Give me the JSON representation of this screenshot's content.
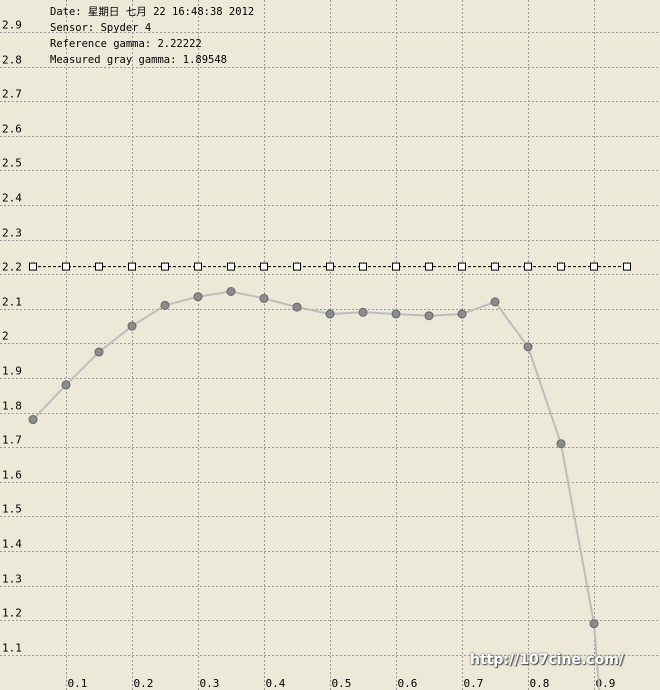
{
  "info": {
    "date": "Date: 星期日 七月 22 16:48:38 2012",
    "sensor": "Sensor: Spyder 4",
    "reference": "Reference gamma: 2.22222",
    "measured": "Measured gray gamma: 1.89548"
  },
  "watermark": "http://107cine.com/",
  "colors": {
    "background": "#ECE9D8",
    "grid": "#999999",
    "measured_line": "#BDBDBD",
    "measured_marker": "#8C8C8C",
    "reference_line": "#000000"
  },
  "chart_data": {
    "type": "line",
    "title": "",
    "xlabel": "",
    "ylabel": "",
    "xlim": [
      0,
      1
    ],
    "ylim": [
      1.0,
      2.95
    ],
    "grid": true,
    "legend": "none",
    "x_ticks": [
      "0.1",
      "0.2",
      "0.3",
      "0.4",
      "0.5",
      "0.6",
      "0.7",
      "0.8",
      "0.9"
    ],
    "y_ticks": [
      "1.1",
      "1.2",
      "1.3",
      "1.4",
      "1.5",
      "1.6",
      "1.7",
      "1.8",
      "1.9",
      "2",
      "2.1",
      "2.2",
      "2.3",
      "2.4",
      "2.5",
      "2.6",
      "2.7",
      "2.8",
      "2.9"
    ],
    "series": [
      {
        "style": "dashed-black-open-squares",
        "x": [
          0.05,
          0.1,
          0.15,
          0.2,
          0.25,
          0.3,
          0.35,
          0.4,
          0.45,
          0.5,
          0.55,
          0.6,
          0.65,
          0.7,
          0.75,
          0.8,
          0.85,
          0.9,
          0.95
        ],
        "y": [
          2.222,
          2.222,
          2.222,
          2.222,
          2.222,
          2.222,
          2.222,
          2.222,
          2.222,
          2.222,
          2.222,
          2.222,
          2.222,
          2.222,
          2.222,
          2.222,
          2.222,
          2.222,
          2.222
        ]
      },
      {
        "style": "gray-line-filled-circles",
        "x": [
          0.05,
          0.1,
          0.15,
          0.2,
          0.25,
          0.3,
          0.35,
          0.4,
          0.45,
          0.5,
          0.55,
          0.6,
          0.65,
          0.7,
          0.75,
          0.8,
          0.85,
          0.9
        ],
        "y": [
          1.78,
          1.88,
          1.975,
          2.05,
          2.11,
          2.135,
          2.15,
          2.13,
          2.105,
          2.085,
          2.09,
          2.085,
          2.08,
          2.085,
          2.12,
          1.99,
          1.71,
          1.19
        ]
      }
    ]
  }
}
